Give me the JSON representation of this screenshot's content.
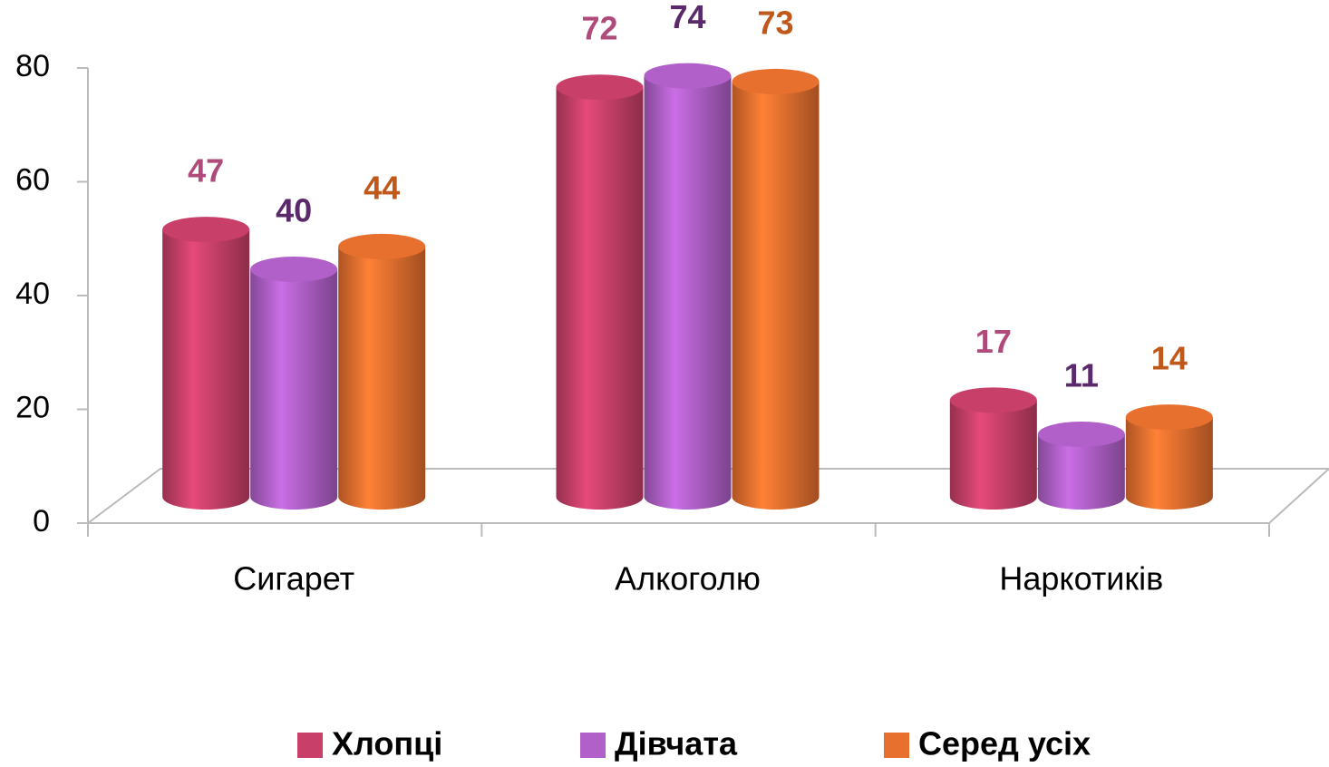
{
  "chart_data": {
    "type": "bar3d",
    "categories": [
      "Сигарет",
      "Алкоголю",
      "Наркотиків"
    ],
    "series": [
      {
        "name": "Хлопці",
        "color": "#c8406a",
        "label_color": "#b04a7a",
        "values": [
          47,
          72,
          17
        ]
      },
      {
        "name": "Дівчата",
        "color": "#b060c8",
        "label_color": "#5a2a6a",
        "values": [
          40,
          74,
          11
        ]
      },
      {
        "name": "Серед усіх",
        "color": "#e8702f",
        "label_color": "#c0581a",
        "values": [
          44,
          73,
          14
        ]
      }
    ],
    "ylim": [
      0,
      80
    ],
    "yticks": [
      0,
      20,
      40,
      60,
      80
    ],
    "legend": "bottom"
  }
}
